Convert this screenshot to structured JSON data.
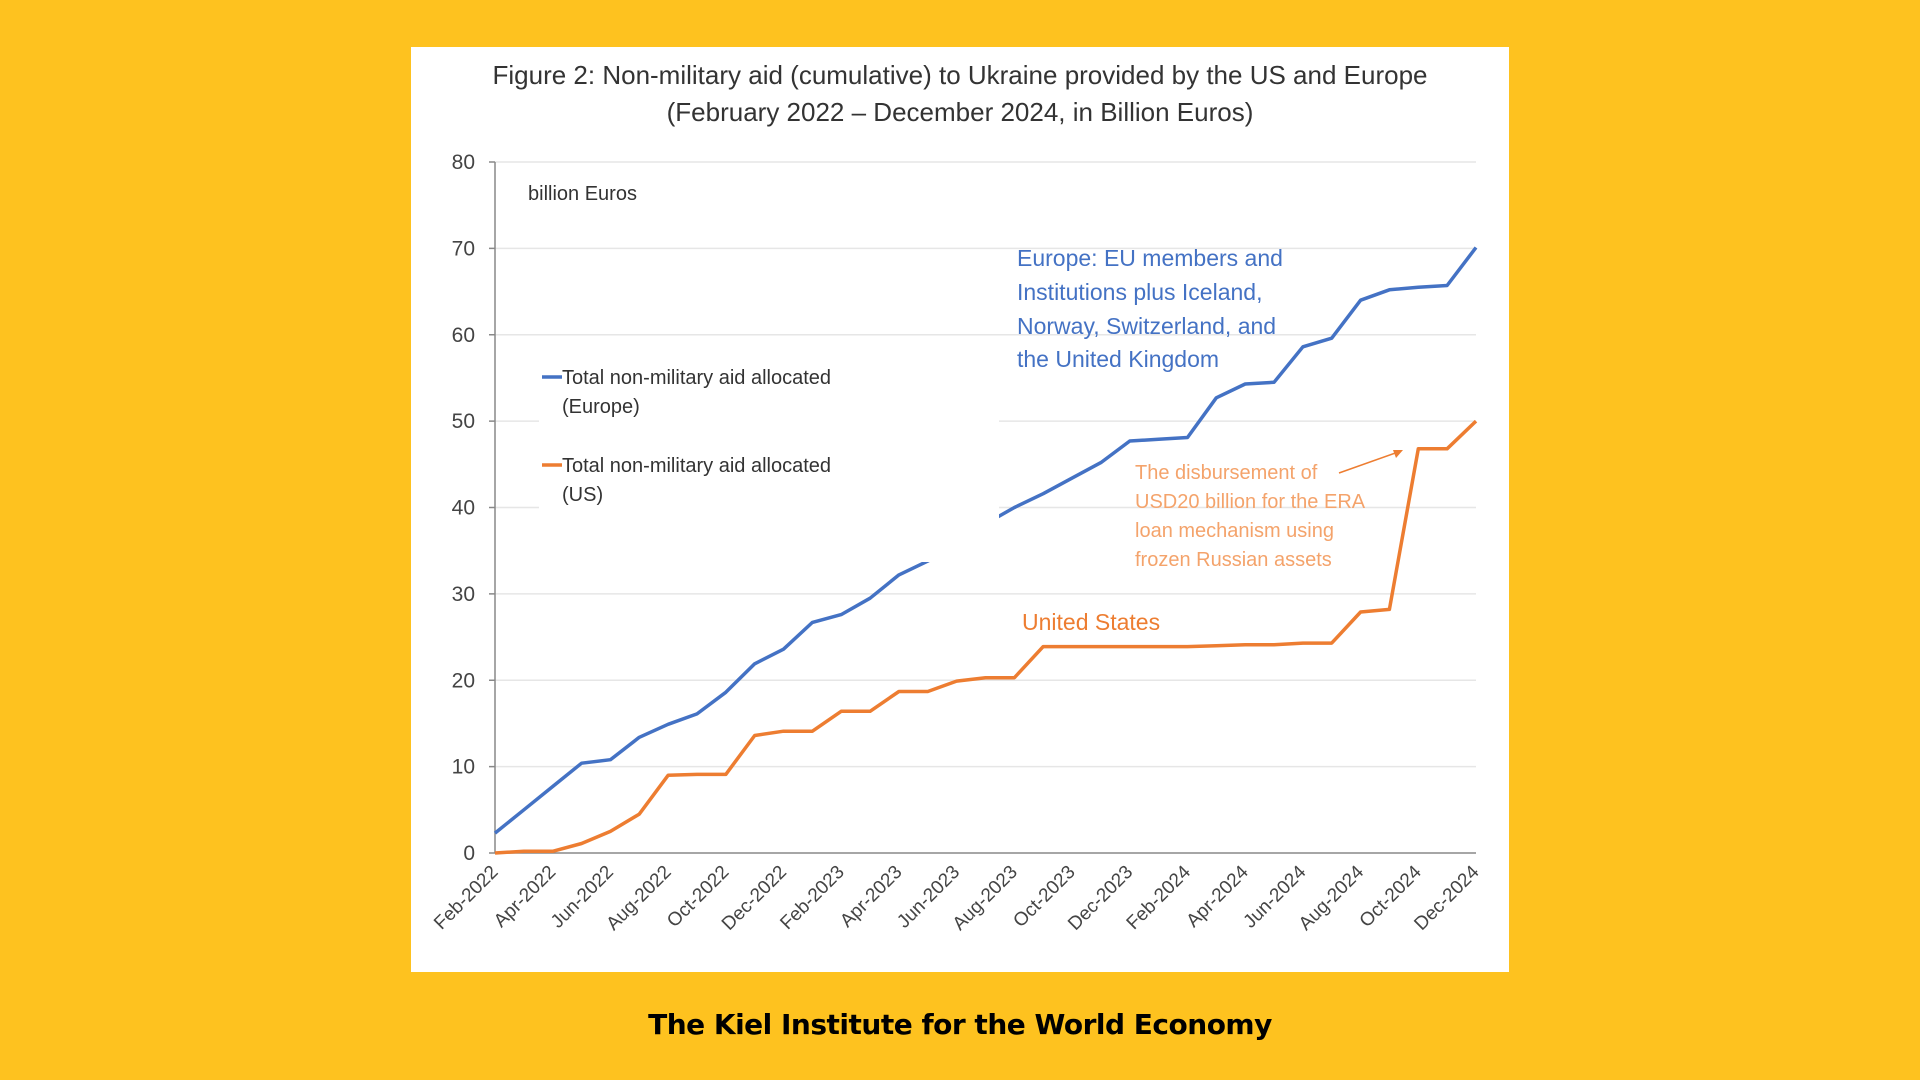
{
  "footer": "The Kiel Institute for the World Economy",
  "chart_data": {
    "type": "line",
    "title": "Figure 2: Non-military aid (cumulative) to Ukraine provided by the US and Europe",
    "subtitle": "(February 2022 – December 2024, in Billion Euros)",
    "ylabel": "billion Euros",
    "xlabel": "",
    "ylim": [
      0,
      80
    ],
    "yticks": [
      0,
      10,
      20,
      30,
      40,
      50,
      60,
      70,
      80
    ],
    "grid": true,
    "legend_position": "upper-left",
    "x": [
      "Feb-2022",
      "Mar-2022",
      "Apr-2022",
      "May-2022",
      "Jun-2022",
      "Jul-2022",
      "Aug-2022",
      "Sep-2022",
      "Oct-2022",
      "Nov-2022",
      "Dec-2022",
      "Jan-2023",
      "Feb-2023",
      "Mar-2023",
      "Apr-2023",
      "May-2023",
      "Jun-2023",
      "Jul-2023",
      "Aug-2023",
      "Sep-2023",
      "Oct-2023",
      "Nov-2023",
      "Dec-2023",
      "Jan-2024",
      "Feb-2024",
      "Mar-2024",
      "Apr-2024",
      "May-2024",
      "Jun-2024",
      "Jul-2024",
      "Aug-2024",
      "Sep-2024",
      "Oct-2024",
      "Nov-2024",
      "Dec-2024"
    ],
    "xtick_labels": [
      "Feb-2022",
      "Apr-2022",
      "Jun-2022",
      "Aug-2022",
      "Oct-2022",
      "Dec-2022",
      "Feb-2023",
      "Apr-2023",
      "Jun-2023",
      "Aug-2023",
      "Oct-2023",
      "Dec-2023",
      "Feb-2024",
      "Apr-2024",
      "Jun-2024",
      "Aug-2024",
      "Oct-2024",
      "Dec-2024"
    ],
    "series": [
      {
        "name": "Total non-military aid allocated (Europe)",
        "legend_line1": "Total non-military aid allocated",
        "legend_line2": "(Europe)",
        "color": "#4472C4",
        "values": [
          2.3,
          5.0,
          7.7,
          10.4,
          10.8,
          13.4,
          14.9,
          16.1,
          18.6,
          21.9,
          23.6,
          26.7,
          27.6,
          29.5,
          32.2,
          33.8,
          35.7,
          38.1,
          40.0,
          41.6,
          43.4,
          45.2,
          47.7,
          47.9,
          48.1,
          52.7,
          54.3,
          54.5,
          58.6,
          59.6,
          64.0,
          65.2,
          65.5,
          65.7,
          70.1
        ]
      },
      {
        "name": "Total non-military aid allocated (US)",
        "legend_line1": "Total non-military aid allocated",
        "legend_line2": "(US)",
        "color": "#ED7D31",
        "values": [
          0.0,
          0.2,
          0.2,
          1.1,
          2.5,
          4.5,
          9.0,
          9.1,
          9.1,
          13.6,
          14.1,
          14.1,
          16.4,
          16.4,
          18.7,
          18.7,
          19.9,
          20.3,
          20.3,
          23.9,
          23.9,
          23.9,
          23.9,
          23.9,
          23.9,
          24.0,
          24.1,
          24.1,
          24.3,
          24.3,
          27.9,
          28.2,
          46.8,
          46.8,
          50.0
        ]
      }
    ],
    "annotations": {
      "europe": [
        "Europe: EU members and",
        "Institutions plus Iceland,",
        "Norway, Switzerland, and",
        "the United Kingdom"
      ],
      "us": "United States",
      "era_note": [
        "The disbursement of",
        "USD20 billion for the ERA",
        "loan mechanism using",
        "frozen Russian assets"
      ]
    }
  }
}
